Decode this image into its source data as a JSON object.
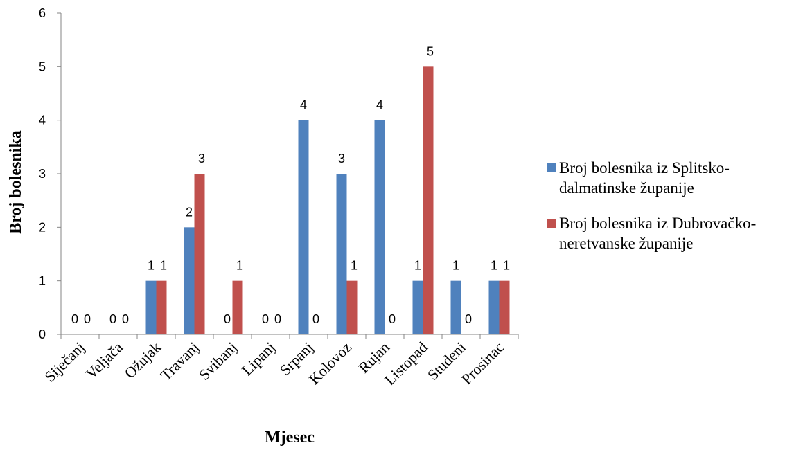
{
  "chart_data": {
    "type": "bar",
    "categories": [
      "Siječanj",
      "Veljača",
      "Ožujak",
      "Travanj",
      "Svibanj",
      "Lipanj",
      "Srpanj",
      "Kolovoz",
      "Rujan",
      "Listopad",
      "Studeni",
      "Prosinac"
    ],
    "series": [
      {
        "name": "Broj bolesnika iz Splitsko-dalmatinske županije",
        "values": [
          0,
          0,
          1,
          2,
          0,
          0,
          4,
          3,
          4,
          1,
          1,
          1
        ],
        "color": "#4F81BD"
      },
      {
        "name": "Broj bolesnika iz Dubrovačko-neretvanske županije",
        "values": [
          0,
          0,
          1,
          3,
          1,
          0,
          0,
          1,
          0,
          5,
          0,
          1
        ],
        "color": "#C0504D"
      }
    ],
    "xlabel": "Mjesec",
    "ylabel": "Broj bolesnika",
    "ylim": [
      0,
      6
    ],
    "yticks": [
      "0",
      "1",
      "2",
      "3",
      "4",
      "5",
      "6"
    ],
    "grid": false,
    "legend_position": "right"
  }
}
